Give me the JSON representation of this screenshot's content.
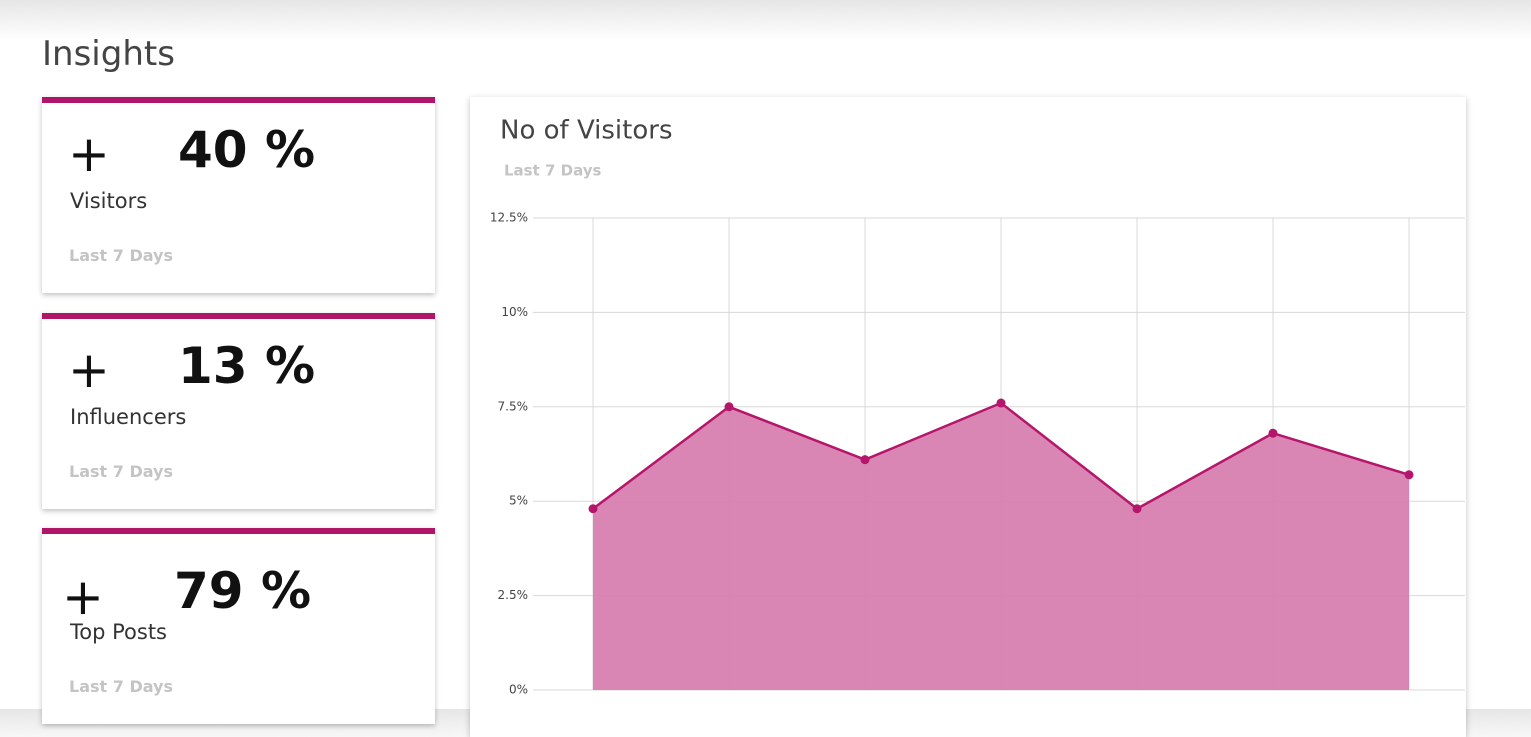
{
  "title": "Insights",
  "cards": [
    {
      "sign": "+",
      "value": "40 %",
      "label": "Visitors",
      "period": "Last 7 Days"
    },
    {
      "sign": "+",
      "value": "13 %",
      "label": "Influencers",
      "period": "Last 7 Days"
    },
    {
      "sign": "+",
      "value": "79 %",
      "label": "Top Posts",
      "period": "Last 7 Days"
    }
  ],
  "chart_data": {
    "type": "area",
    "title": "No of Visitors",
    "subtitle": "Last 7 Days",
    "categories": [
      null,
      null,
      null,
      null,
      null,
      null,
      null
    ],
    "values": [
      4.8,
      7.5,
      6.1,
      7.6,
      4.8,
      6.8,
      5.7
    ],
    "color": "#b5166b",
    "fill": "#d77fb0",
    "ylim": [
      0,
      12.5
    ],
    "yticks": [
      {
        "value": 0,
        "label": "0%"
      },
      {
        "value": 2.5,
        "label": "2.5%"
      },
      {
        "value": 5,
        "label": "5%"
      },
      {
        "value": 7.5,
        "label": "7.5%"
      },
      {
        "value": 10,
        "label": "10%"
      },
      {
        "value": 12.5,
        "label": "12.5%"
      }
    ],
    "grid": true
  }
}
